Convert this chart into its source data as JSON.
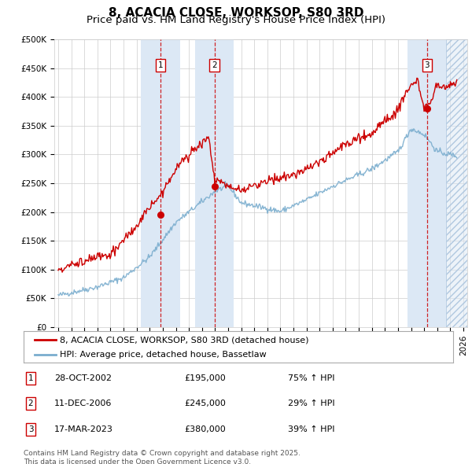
{
  "title": "8, ACACIA CLOSE, WORKSOP, S80 3RD",
  "subtitle": "Price paid vs. HM Land Registry's House Price Index (HPI)",
  "ylim": [
    0,
    500000
  ],
  "yticks": [
    0,
    50000,
    100000,
    150000,
    200000,
    250000,
    300000,
    350000,
    400000,
    450000,
    500000
  ],
  "ytick_labels": [
    "£0",
    "£50K",
    "£100K",
    "£150K",
    "£200K",
    "£250K",
    "£300K",
    "£350K",
    "£400K",
    "£450K",
    "£500K"
  ],
  "xlim_start": 1994.7,
  "xlim_end": 2026.3,
  "sale_dates": [
    2002.83,
    2006.95,
    2023.22
  ],
  "sale_prices": [
    195000,
    245000,
    380000
  ],
  "sale_labels": [
    "1",
    "2",
    "3"
  ],
  "sale_info": [
    {
      "num": "1",
      "date": "28-OCT-2002",
      "price": "£195,000",
      "hpi": "75% ↑ HPI"
    },
    {
      "num": "2",
      "date": "11-DEC-2006",
      "price": "£245,000",
      "hpi": "29% ↑ HPI"
    },
    {
      "num": "3",
      "date": "17-MAR-2023",
      "price": "£380,000",
      "hpi": "39% ↑ HPI"
    }
  ],
  "red_line_color": "#cc0000",
  "blue_line_color": "#7aadce",
  "shade_color": "#dce8f5",
  "grid_color": "#cccccc",
  "background_color": "#ffffff",
  "legend_label_red": "8, ACACIA CLOSE, WORKSOP, S80 3RD (detached house)",
  "legend_label_blue": "HPI: Average price, detached house, Bassetlaw",
  "footer": "Contains HM Land Registry data © Crown copyright and database right 2025.\nThis data is licensed under the Open Government Licence v3.0.",
  "title_fontsize": 11,
  "subtitle_fontsize": 9.5,
  "tick_fontsize": 7.5,
  "legend_fontsize": 8,
  "footer_fontsize": 6.5
}
